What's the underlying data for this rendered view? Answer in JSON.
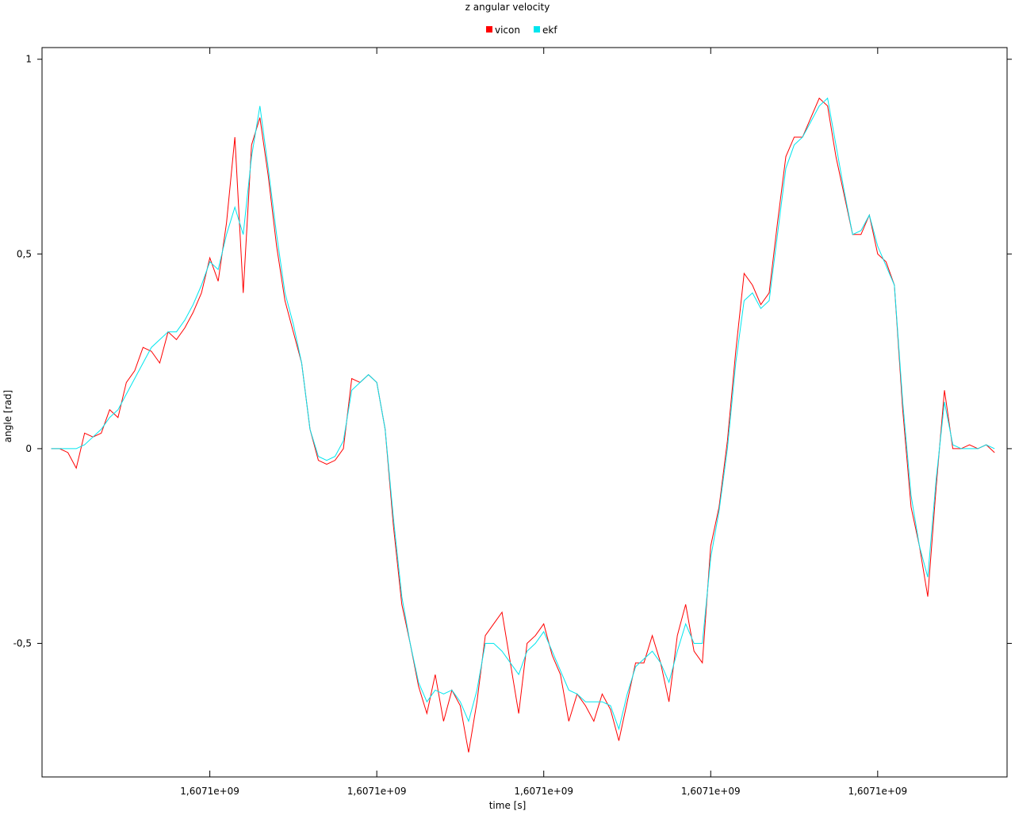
{
  "chart_data": {
    "type": "line",
    "title": "z angular velocity",
    "xlabel": "time [s]",
    "ylabel": "angle [rad]",
    "x": [
      1607100001,
      1607100002,
      1607100003,
      1607100004,
      1607100005,
      1607100006,
      1607100007,
      1607100008,
      1607100009,
      1607100010,
      1607100011,
      1607100012,
      1607100013,
      1607100014,
      1607100015,
      1607100016,
      1607100017,
      1607100018,
      1607100019,
      1607100020,
      1607100021,
      1607100022,
      1607100023,
      1607100024,
      1607100025,
      1607100026,
      1607100027,
      1607100028,
      1607100029,
      1607100030,
      1607100031,
      1607100032,
      1607100033,
      1607100034,
      1607100035,
      1607100036,
      1607100037,
      1607100038,
      1607100039,
      1607100040,
      1607100041,
      1607100042,
      1607100043,
      1607100044,
      1607100045,
      1607100046,
      1607100047,
      1607100048,
      1607100049,
      1607100050,
      1607100051,
      1607100052,
      1607100053,
      1607100054,
      1607100055,
      1607100056,
      1607100057,
      1607100058,
      1607100059,
      1607100060,
      1607100061,
      1607100062,
      1607100063,
      1607100064,
      1607100065,
      1607100066,
      1607100067,
      1607100068,
      1607100069,
      1607100070,
      1607100071,
      1607100072,
      1607100073,
      1607100074,
      1607100075,
      1607100076,
      1607100077,
      1607100078,
      1607100079,
      1607100080,
      1607100081,
      1607100082,
      1607100083,
      1607100084,
      1607100085,
      1607100086,
      1607100087,
      1607100088,
      1607100089,
      1607100090,
      1607100091,
      1607100092,
      1607100093,
      1607100094,
      1607100095,
      1607100096,
      1607100097,
      1607100098,
      1607100099,
      1607100100,
      1607100101,
      1607100102,
      1607100103,
      1607100104,
      1607100105,
      1607100106,
      1607100107,
      1607100108,
      1607100109,
      1607100110,
      1607100111,
      1607100112,
      1607100113,
      1607100114
    ],
    "series": [
      {
        "name": "vicon",
        "color": "#ff0000",
        "values": [
          0,
          0,
          -0.01,
          -0.05,
          0.04,
          0.03,
          0.04,
          0.1,
          0.08,
          0.17,
          0.2,
          0.26,
          0.25,
          0.22,
          0.3,
          0.28,
          0.31,
          0.35,
          0.4,
          0.49,
          0.43,
          0.58,
          0.8,
          0.4,
          0.78,
          0.85,
          0.7,
          0.52,
          0.38,
          0.3,
          0.22,
          0.05,
          -0.03,
          -0.04,
          -0.03,
          0,
          0.18,
          0.17,
          0.19,
          0.17,
          0.05,
          -0.2,
          -0.4,
          -0.5,
          -0.61,
          -0.68,
          -0.58,
          -0.7,
          -0.62,
          -0.66,
          -0.78,
          -0.65,
          -0.48,
          -0.45,
          -0.42,
          -0.55,
          -0.68,
          -0.5,
          -0.48,
          -0.45,
          -0.53,
          -0.58,
          -0.7,
          -0.63,
          -0.66,
          -0.7,
          -0.63,
          -0.67,
          -0.75,
          -0.65,
          -0.55,
          -0.55,
          -0.48,
          -0.55,
          -0.65,
          -0.48,
          -0.4,
          -0.52,
          -0.55,
          -0.25,
          -0.15,
          0.02,
          0.25,
          0.45,
          0.42,
          0.37,
          0.4,
          0.58,
          0.75,
          0.8,
          0.8,
          0.85,
          0.9,
          0.88,
          0.75,
          0.65,
          0.55,
          0.55,
          0.6,
          0.5,
          0.48,
          0.42,
          0.1,
          -0.15,
          -0.25,
          -0.38,
          -0.1,
          0.15,
          0,
          0,
          0.01,
          0,
          0.01,
          -0.01
        ]
      },
      {
        "name": "ekf",
        "color": "#00e5ee",
        "values": [
          0,
          0,
          0,
          0,
          0.01,
          0.03,
          0.05,
          0.08,
          0.1,
          0.14,
          0.18,
          0.22,
          0.26,
          0.28,
          0.3,
          0.3,
          0.33,
          0.37,
          0.42,
          0.48,
          0.46,
          0.55,
          0.62,
          0.55,
          0.75,
          0.88,
          0.72,
          0.55,
          0.4,
          0.32,
          0.22,
          0.05,
          -0.02,
          -0.03,
          -0.02,
          0.02,
          0.15,
          0.17,
          0.19,
          0.17,
          0.05,
          -0.18,
          -0.38,
          -0.5,
          -0.6,
          -0.65,
          -0.62,
          -0.63,
          -0.62,
          -0.65,
          -0.7,
          -0.62,
          -0.5,
          -0.5,
          -0.52,
          -0.55,
          -0.58,
          -0.52,
          -0.5,
          -0.47,
          -0.52,
          -0.57,
          -0.62,
          -0.63,
          -0.65,
          -0.65,
          -0.65,
          -0.66,
          -0.72,
          -0.63,
          -0.56,
          -0.54,
          -0.52,
          -0.55,
          -0.6,
          -0.52,
          -0.45,
          -0.5,
          -0.5,
          -0.28,
          -0.16,
          0,
          0.22,
          0.38,
          0.4,
          0.36,
          0.38,
          0.55,
          0.72,
          0.78,
          0.8,
          0.84,
          0.88,
          0.9,
          0.78,
          0.66,
          0.55,
          0.56,
          0.6,
          0.52,
          0.47,
          0.42,
          0.12,
          -0.12,
          -0.25,
          -0.33,
          -0.08,
          0.12,
          0.01,
          0,
          0,
          0,
          0.01,
          0
        ]
      }
    ],
    "xlim": [
      1607099999.9,
      1607100115.5
    ],
    "xticks": [
      {
        "value": 1607100020,
        "label": "1,6071e+09"
      },
      {
        "value": 1607100040,
        "label": "1,6071e+09"
      },
      {
        "value": 1607100060,
        "label": "1,6071e+09"
      },
      {
        "value": 1607100080,
        "label": "1,6071e+09"
      },
      {
        "value": 1607100100,
        "label": "1,6071e+09"
      }
    ],
    "ylim": [
      -0.843,
      1.03
    ],
    "yticks": [
      1,
      {
        "value": 0.5,
        "label": "0,5"
      },
      0,
      {
        "value": -0.5,
        "label": "-0,5"
      }
    ],
    "legend": "top"
  }
}
